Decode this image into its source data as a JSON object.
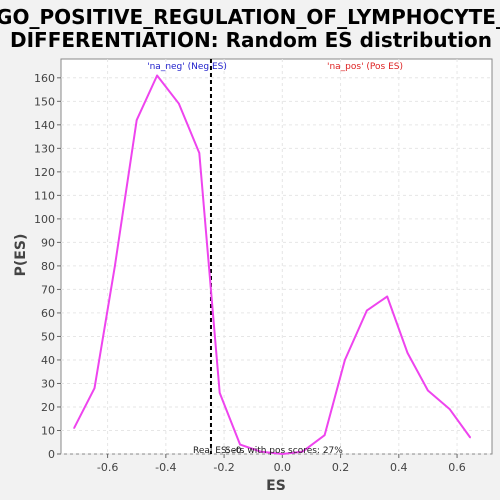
{
  "chart_data": {
    "type": "line",
    "title_lines": [
      "GO_POSITIVE_REGULATION_OF_LYMPHOCYTE_",
      "DIFFERENTIATION: Random ES distribution"
    ],
    "xlabel": "ES",
    "ylabel": "P(ES)",
    "xlim": [
      -0.76,
      0.72
    ],
    "ylim": [
      0,
      168
    ],
    "x_ticks": [
      -0.6,
      -0.4,
      -0.2,
      0.0,
      0.2,
      0.4,
      0.6
    ],
    "x_tick_labels": [
      "-0.6",
      "-0.4",
      "-0.2",
      "0.0",
      "0.2",
      "0.4",
      "0.6"
    ],
    "y_ticks": [
      0,
      10,
      20,
      30,
      40,
      50,
      60,
      70,
      80,
      90,
      100,
      110,
      120,
      130,
      140,
      150,
      160
    ],
    "y_tick_labels": [
      "0",
      "10",
      "20",
      "30",
      "40",
      "50",
      "60",
      "70",
      "80",
      "90",
      "100",
      "110",
      "120",
      "130",
      "140",
      "150",
      "160"
    ],
    "grid": true,
    "series": [
      {
        "color": "#ee44ee",
        "x": [
          -0.715,
          -0.645,
          -0.575,
          -0.5,
          -0.43,
          -0.355,
          -0.285,
          -0.215,
          -0.145,
          -0.075,
          0.0,
          0.07,
          0.145,
          0.215,
          0.29,
          0.36,
          0.43,
          0.5,
          0.575,
          0.645
        ],
        "y": [
          11,
          28,
          80,
          142,
          161,
          149,
          128,
          26,
          4,
          1,
          0,
          1,
          8,
          40,
          61,
          67,
          43,
          27,
          19,
          7
        ]
      }
    ],
    "vline": {
      "x": -0.245,
      "color": "#000000",
      "style": "dashed"
    },
    "annotations": {
      "neg": {
        "text": "'na_neg' (Neg ES)",
        "color": "#2222cc"
      },
      "pos": {
        "text": "'na_pos' (Pos ES)",
        "color": "#dd2222"
      },
      "real_es": "Real ES: -0.",
      "pos_scores": "Sets with pos scores: 27%"
    }
  }
}
